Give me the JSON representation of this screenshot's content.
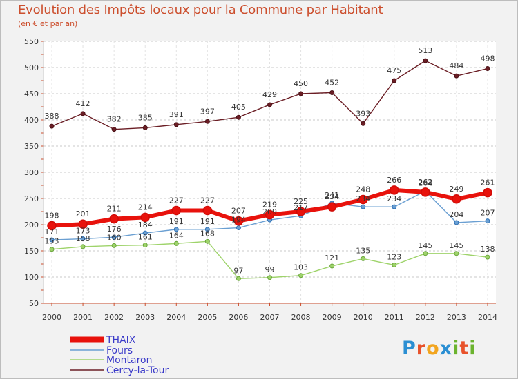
{
  "title": "Evolution des Impôts locaux pour la Commune par Habitant",
  "subtitle": "(en € et par an)",
  "logo": {
    "p": "P",
    "r": "r",
    "o": "o",
    "x": "x",
    "i1": "i",
    "t": "t",
    "i2": "i"
  },
  "chart_data": {
    "type": "line",
    "title": "Evolution des Impôts locaux pour la Commune par Habitant",
    "subtitle": "(en € et par an)",
    "xlabel": "",
    "ylabel": "",
    "x": [
      "2000",
      "2001",
      "2002",
      "2003",
      "2004",
      "2005",
      "2006",
      "2007",
      "2008",
      "2009",
      "2010",
      "2011",
      "2012",
      "2013",
      "2014"
    ],
    "y_ticks": [
      50,
      100,
      150,
      200,
      250,
      300,
      350,
      400,
      450,
      500,
      550
    ],
    "ylim": [
      50,
      550
    ],
    "grid": "horizontal dashed",
    "legend_position": "bottom-left",
    "series": [
      {
        "name": "THAIX",
        "color": "#e8120c",
        "values": [
          198,
          201,
          211,
          214,
          227,
          227,
          207,
          219,
          225,
          234,
          248,
          266,
          262,
          249,
          261
        ],
        "label": [
          198,
          201,
          211,
          214,
          227,
          227,
          207,
          219,
          225,
          234,
          248,
          266,
          262,
          249,
          261
        ]
      },
      {
        "name": "Fours",
        "color": "#6a9fd2",
        "values": [
          171,
          173,
          176,
          184,
          191,
          191,
          194,
          209,
          217,
          241,
          234,
          234,
          264,
          204,
          207
        ],
        "label": [
          171,
          173,
          176,
          184,
          191,
          191,
          194,
          209,
          217,
          241,
          234,
          234,
          264,
          204,
          207
        ]
      },
      {
        "name": "Montaron",
        "color": "#9ed36a",
        "values": [
          153,
          158,
          160,
          161,
          164,
          168,
          97,
          99,
          103,
          121,
          135,
          123,
          145,
          145,
          138
        ],
        "label": [
          153,
          158,
          160,
          161,
          164,
          168,
          97,
          99,
          103,
          121,
          135,
          123,
          145,
          145,
          138
        ]
      },
      {
        "name": "Cercy-la-Tour",
        "color": "#6b1e25",
        "values": [
          388,
          412,
          382,
          385,
          391,
          397,
          405,
          429,
          450,
          452,
          393,
          475,
          513,
          484,
          498
        ],
        "label": [
          388,
          412,
          382,
          385,
          391,
          397,
          405,
          429,
          450,
          452,
          393,
          475,
          513,
          484,
          498
        ]
      }
    ]
  }
}
